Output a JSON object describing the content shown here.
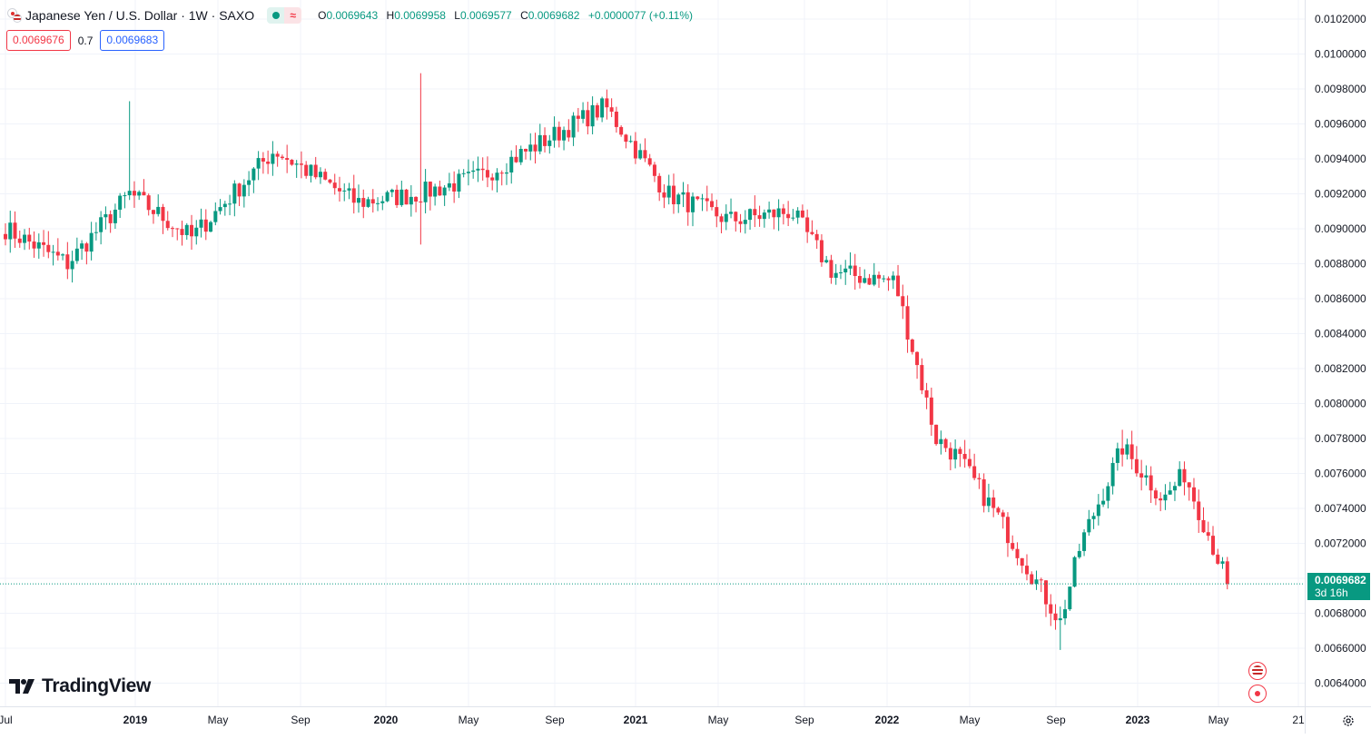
{
  "header": {
    "title": "Japanese Yen / U.S. Dollar · 1W · SAXO",
    "ohlc": [
      {
        "k": "O",
        "v": "0.0069643"
      },
      {
        "k": "H",
        "v": "0.0069958"
      },
      {
        "k": "L",
        "v": "0.0069577"
      },
      {
        "k": "C",
        "v": "0.0069682"
      }
    ],
    "change": "+0.0000077 (+0.11%)",
    "icons": [
      "japan-flag-icon",
      "us-flag-icon",
      "market-open-dot-icon",
      "wave-icon"
    ]
  },
  "quote": {
    "sell": "0.0069676",
    "spread": "0.7",
    "buy": "0.0069683"
  },
  "last_price": {
    "price": "0.0069682",
    "countdown": "3d 16h"
  },
  "logo": {
    "text": "TradingView"
  },
  "colors": {
    "up": "#089981",
    "down": "#f23645",
    "grid": "#f0f3fa",
    "axis_text": "#131722"
  },
  "chart_data": {
    "type": "candlestick",
    "title": "Japanese Yen / U.S. Dollar · 1W · SAXO",
    "interval": "1W",
    "y_ticks": [
      "0.0102000",
      "0.0100000",
      "0.0098000",
      "0.0096000",
      "0.0094000",
      "0.0092000",
      "0.0090000",
      "0.0088000",
      "0.0086000",
      "0.0084000",
      "0.0082000",
      "0.0080000",
      "0.0078000",
      "0.0076000",
      "0.0074000",
      "0.0072000",
      "0.0070000",
      "0.0068000",
      "0.0066000",
      "0.0064000"
    ],
    "ylim": [
      0.00635,
      0.01025
    ],
    "x_ticks": [
      "Jul",
      "2019",
      "May",
      "Sep",
      "2020",
      "May",
      "Sep",
      "2021",
      "May",
      "Sep",
      "2022",
      "May",
      "Sep",
      "2023",
      "May",
      "21"
    ],
    "last_close": 0.0069682,
    "key_points": [
      {
        "date": "2018-07",
        "close": 0.009
      },
      {
        "date": "2018-10",
        "close": 0.0088
      },
      {
        "date": "2019-01",
        "high": 0.00973,
        "close": 0.0092
      },
      {
        "date": "2019-04",
        "close": 0.00895
      },
      {
        "date": "2019-08",
        "close": 0.00945
      },
      {
        "date": "2019-12",
        "close": 0.00915
      },
      {
        "date": "2020-03",
        "high": 0.00989,
        "low": 0.00891,
        "close": 0.0092
      },
      {
        "date": "2020-06",
        "close": 0.0093
      },
      {
        "date": "2020-09",
        "close": 0.0095
      },
      {
        "date": "2020-12",
        "close": 0.0097
      },
      {
        "date": "2021-03",
        "close": 0.0092
      },
      {
        "date": "2021-06",
        "close": 0.00905
      },
      {
        "date": "2021-09",
        "close": 0.0091
      },
      {
        "date": "2021-11",
        "close": 0.00875
      },
      {
        "date": "2022-02",
        "close": 0.0087
      },
      {
        "date": "2022-04",
        "close": 0.0078
      },
      {
        "date": "2022-05",
        "close": 0.0077
      },
      {
        "date": "2022-07",
        "close": 0.00735
      },
      {
        "date": "2022-10",
        "low": 0.00659,
        "close": 0.00675
      },
      {
        "date": "2022-11",
        "close": 0.0072
      },
      {
        "date": "2023-01",
        "high": 0.00785,
        "close": 0.00775
      },
      {
        "date": "2023-03",
        "close": 0.00745
      },
      {
        "date": "2023-04",
        "close": 0.0076
      },
      {
        "date": "2023-06",
        "close": 0.007
      }
    ]
  }
}
